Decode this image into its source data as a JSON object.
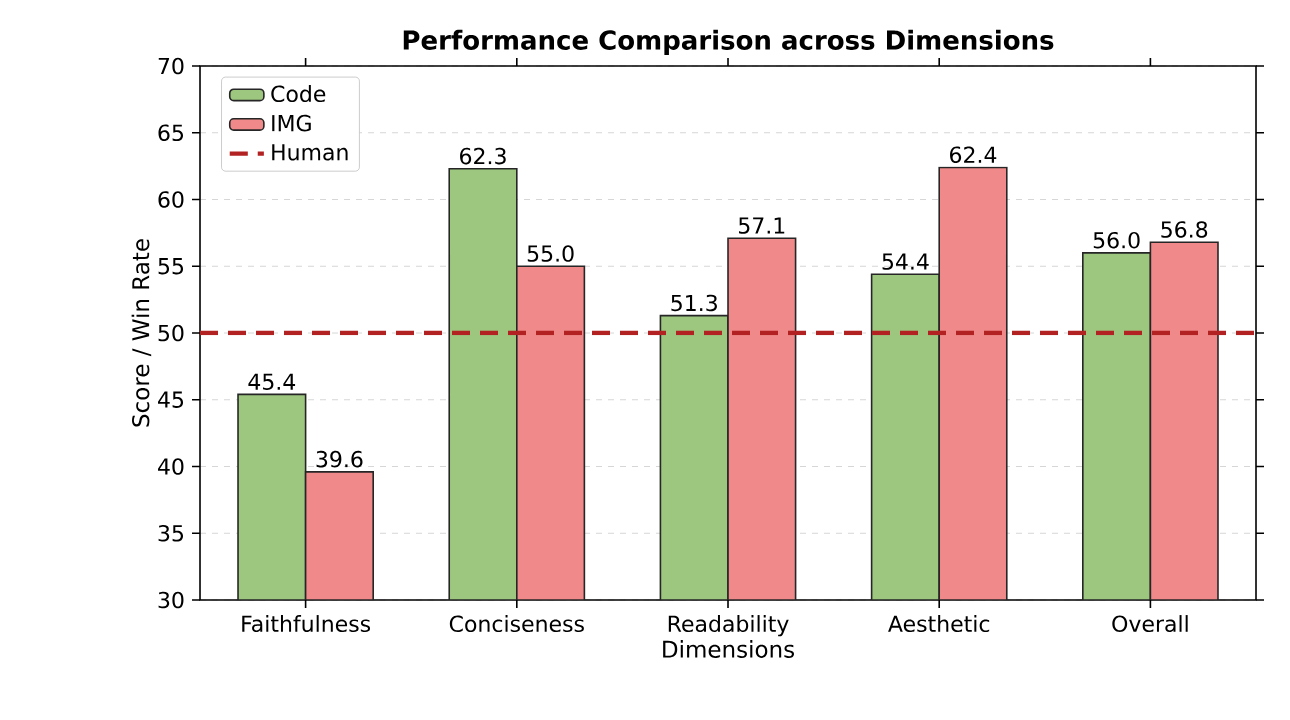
{
  "chart_data": {
    "type": "bar",
    "title": "Performance Comparison across Dimensions",
    "xlabel": "Dimensions",
    "ylabel": "Score / Win Rate",
    "categories": [
      "Faithfulness",
      "Conciseness",
      "Readability",
      "Aesthetic",
      "Overall"
    ],
    "series": [
      {
        "name": "Code",
        "color": "#9dc67f",
        "values": [
          45.4,
          62.3,
          51.3,
          54.4,
          56.0
        ],
        "value_labels": [
          "45.4",
          "62.3",
          "51.3",
          "54.4",
          "56.0"
        ]
      },
      {
        "name": "IMG",
        "color": "#f08a8a",
        "values": [
          39.6,
          55.0,
          57.1,
          62.4,
          56.8
        ],
        "value_labels": [
          "39.6",
          "55.0",
          "57.1",
          "62.4",
          "56.8"
        ]
      }
    ],
    "ylim": [
      30,
      70
    ],
    "yticks": [
      30,
      35,
      40,
      45,
      50,
      55,
      60,
      65,
      70
    ],
    "ref_lines": [
      {
        "axis": "y",
        "value": 50,
        "label": "Human",
        "color": "#b22222",
        "line_style": "dashed"
      }
    ],
    "grid": "y",
    "legend": "top left"
  }
}
